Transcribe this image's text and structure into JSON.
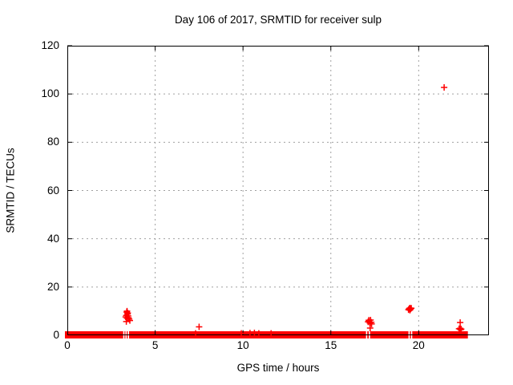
{
  "chart_data": {
    "type": "scatter",
    "title": "Day 106 of 2017, SRMTID for receiver sulp",
    "xlabel": "GPS time / hours",
    "ylabel": "SRMTID / TECUs",
    "xlim": [
      0,
      24
    ],
    "ylim": [
      0,
      120
    ],
    "x_ticks": [
      0,
      5,
      10,
      15,
      20
    ],
    "y_ticks": [
      0,
      20,
      40,
      60,
      80,
      100,
      120
    ],
    "grid": true,
    "legend_position": "none",
    "marker": "plus",
    "marker_color": "#ff0000",
    "grid_color": "#a0a0a0",
    "border_color": "#000000",
    "background_color": "#ffffff",
    "baseline_band": {
      "description": "dense near-zero SRMTID measurements forming a thick red band along y=0",
      "x_start": 0,
      "x_end": 22.8,
      "y_center": 0,
      "y_spread": 1.5,
      "gaps": [
        [
          3.18,
          3.22
        ],
        [
          3.31,
          3.35
        ],
        [
          3.44,
          3.48
        ],
        [
          17.0,
          17.04
        ],
        [
          17.16,
          17.2
        ],
        [
          19.42,
          19.46
        ],
        [
          19.56,
          19.6
        ]
      ]
    },
    "outlier_points": [
      [
        3.32,
        7.6
      ],
      [
        3.36,
        8.2
      ],
      [
        3.38,
        9.6
      ],
      [
        3.4,
        10.0
      ],
      [
        3.42,
        8.8
      ],
      [
        3.44,
        9.2
      ],
      [
        3.46,
        8.0
      ],
      [
        3.4,
        7.0
      ],
      [
        3.48,
        7.3
      ],
      [
        3.52,
        6.7
      ],
      [
        3.56,
        6.1
      ],
      [
        3.36,
        5.7
      ],
      [
        7.5,
        3.5
      ],
      [
        7.3,
        0.8
      ],
      [
        9.9,
        0.8
      ],
      [
        10.4,
        0.9
      ],
      [
        10.65,
        1.0
      ],
      [
        10.9,
        0.8
      ],
      [
        11.6,
        0.8
      ],
      [
        17.12,
        5.6
      ],
      [
        17.16,
        6.2
      ],
      [
        17.18,
        5.9
      ],
      [
        17.22,
        5.1
      ],
      [
        17.26,
        6.3
      ],
      [
        17.3,
        5.4
      ],
      [
        17.32,
        4.7
      ],
      [
        17.24,
        3.0
      ],
      [
        19.42,
        10.6
      ],
      [
        19.46,
        11.0
      ],
      [
        19.5,
        11.3
      ],
      [
        19.54,
        10.9
      ],
      [
        19.58,
        11.2
      ],
      [
        19.5,
        10.4
      ],
      [
        21.45,
        102.7
      ],
      [
        22.36,
        5.3
      ],
      [
        22.3,
        2.7
      ],
      [
        22.36,
        2.9
      ],
      [
        22.42,
        2.6
      ],
      [
        22.38,
        2.3
      ]
    ]
  }
}
